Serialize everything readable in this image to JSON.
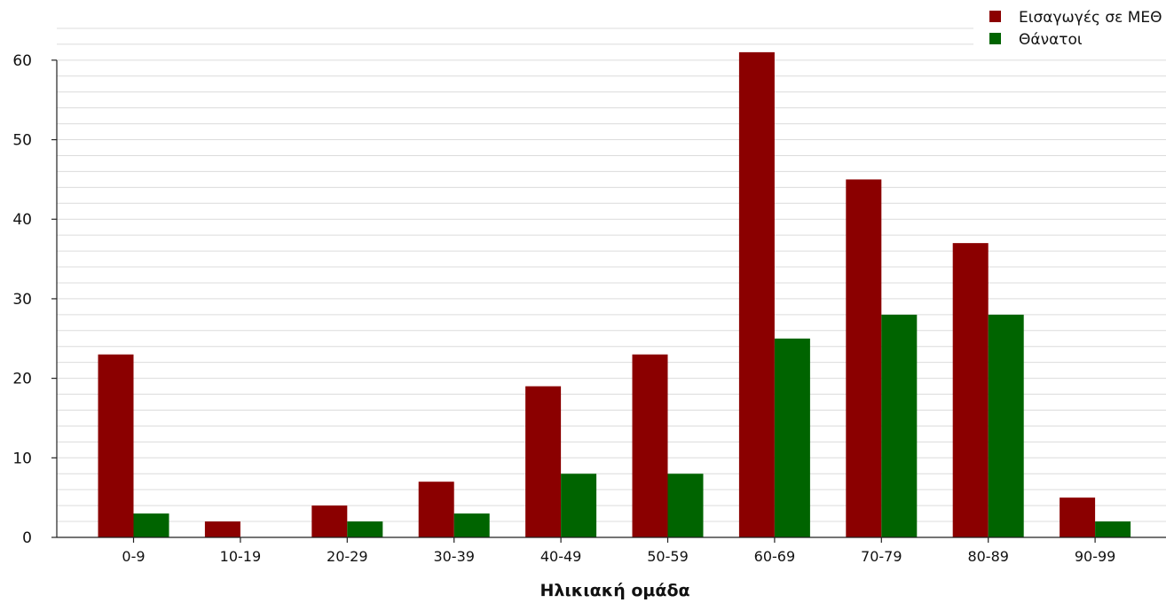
{
  "chart_data": {
    "type": "bar",
    "categories": [
      "0-9",
      "10-19",
      "20-29",
      "30-39",
      "40-49",
      "50-59",
      "60-69",
      "70-79",
      "80-89",
      "90-99"
    ],
    "series": [
      {
        "name": "Εισαγωγές σε ΜΕΘ",
        "color": "#8b0000",
        "values": [
          23,
          2,
          4,
          7,
          19,
          23,
          61,
          45,
          37,
          5
        ]
      },
      {
        "name": "Θάνατοι",
        "color": "#006400",
        "values": [
          3,
          0,
          2,
          3,
          8,
          8,
          25,
          28,
          28,
          2
        ]
      }
    ],
    "title": "",
    "xlabel": "Ηλικιακή ομάδα",
    "ylabel": "",
    "ylim": [
      0,
      65
    ],
    "yticks": [
      0,
      10,
      20,
      30,
      40,
      50,
      60
    ],
    "grid": true,
    "legend": "top-right"
  }
}
